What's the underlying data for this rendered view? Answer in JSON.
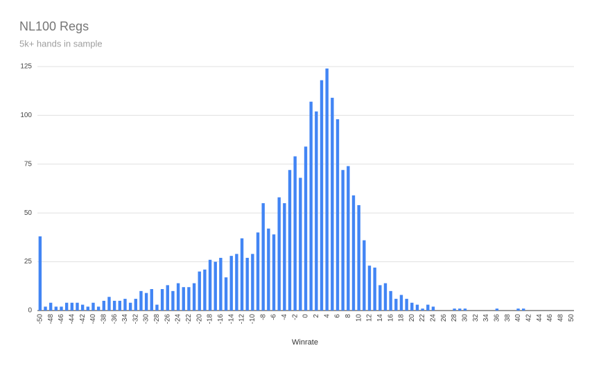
{
  "chart_data": {
    "type": "bar",
    "title": "NL100 Regs",
    "subtitle": "5k+ hands in sample",
    "x_label": "Winrate",
    "categories": [
      -50,
      null,
      -48,
      null,
      -46,
      null,
      -44,
      null,
      -42,
      null,
      -40,
      null,
      -38,
      null,
      -36,
      null,
      -34,
      null,
      -32,
      null,
      -30,
      null,
      -28,
      null,
      -26,
      null,
      -24,
      null,
      -22,
      null,
      -20,
      null,
      -18,
      null,
      -16,
      null,
      -14,
      null,
      -12,
      null,
      -10,
      null,
      -8,
      null,
      -6,
      null,
      -4,
      null,
      -2,
      null,
      0,
      null,
      2,
      null,
      4,
      null,
      6,
      null,
      8,
      null,
      10,
      null,
      12,
      null,
      14,
      null,
      16,
      null,
      18,
      null,
      20,
      null,
      22,
      null,
      24,
      null,
      26,
      null,
      28,
      null,
      30,
      null,
      32,
      null,
      34,
      null,
      36,
      null,
      38,
      null,
      40,
      null,
      42,
      null,
      44,
      null,
      46,
      null,
      48,
      null,
      50
    ],
    "values": [
      38,
      2,
      4,
      2,
      2,
      4,
      4,
      4,
      3,
      2,
      4,
      2,
      5,
      7,
      5,
      5,
      6,
      4,
      6,
      10,
      9,
      11,
      3,
      11,
      13,
      10,
      14,
      12,
      12,
      14,
      20,
      21,
      26,
      25,
      27,
      17,
      28,
      29,
      37,
      27,
      29,
      40,
      55,
      42,
      39,
      58,
      55,
      72,
      79,
      68,
      84,
      107,
      102,
      118,
      124,
      109,
      98,
      72,
      74,
      59,
      54,
      36,
      23,
      22,
      13,
      14,
      10,
      6,
      8,
      6,
      4,
      3,
      1,
      3,
      2,
      0,
      0,
      0,
      1,
      1,
      1,
      0,
      0,
      0,
      0,
      0,
      1,
      0,
      0,
      0,
      1,
      1,
      0,
      0,
      0,
      0,
      0,
      0,
      0,
      0,
      0
    ],
    "color": "#4285f4",
    "ylim": [
      0,
      125
    ],
    "yticks": [
      0,
      25,
      50,
      75,
      100,
      125
    ],
    "grid": true
  }
}
